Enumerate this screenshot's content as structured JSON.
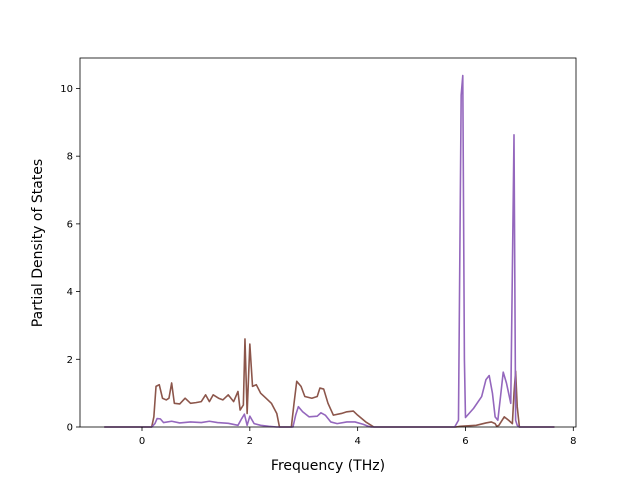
{
  "chart_data": {
    "type": "line",
    "title": "",
    "xlabel": "Frequency (THz)",
    "ylabel": "Partial Density of States",
    "xlim": [
      -1.15,
      8.05
    ],
    "ylim": [
      0,
      10.9
    ],
    "xticks": [
      0,
      2,
      4,
      6,
      8
    ],
    "yticks": [
      0,
      2,
      4,
      6,
      8,
      10
    ],
    "grid": false,
    "legend": "none",
    "series": [
      {
        "color": "#8c564b",
        "points": [
          [
            -0.7,
            0
          ],
          [
            0.18,
            0
          ],
          [
            0.22,
            0.3
          ],
          [
            0.26,
            1.2
          ],
          [
            0.32,
            1.25
          ],
          [
            0.38,
            0.85
          ],
          [
            0.45,
            0.8
          ],
          [
            0.5,
            0.85
          ],
          [
            0.55,
            1.3
          ],
          [
            0.6,
            0.7
          ],
          [
            0.7,
            0.68
          ],
          [
            0.8,
            0.85
          ],
          [
            0.9,
            0.7
          ],
          [
            1.0,
            0.72
          ],
          [
            1.1,
            0.75
          ],
          [
            1.18,
            0.95
          ],
          [
            1.25,
            0.75
          ],
          [
            1.32,
            0.95
          ],
          [
            1.42,
            0.85
          ],
          [
            1.5,
            0.8
          ],
          [
            1.6,
            0.95
          ],
          [
            1.7,
            0.75
          ],
          [
            1.78,
            1.05
          ],
          [
            1.82,
            0.5
          ],
          [
            1.88,
            0.65
          ],
          [
            1.91,
            2.6
          ],
          [
            1.95,
            0.4
          ],
          [
            2.0,
            2.45
          ],
          [
            2.05,
            1.2
          ],
          [
            2.12,
            1.25
          ],
          [
            2.2,
            1.0
          ],
          [
            2.3,
            0.85
          ],
          [
            2.4,
            0.7
          ],
          [
            2.5,
            0.4
          ],
          [
            2.55,
            0
          ],
          [
            2.77,
            0
          ],
          [
            2.82,
            0.7
          ],
          [
            2.87,
            1.35
          ],
          [
            2.95,
            1.2
          ],
          [
            3.02,
            0.9
          ],
          [
            3.15,
            0.85
          ],
          [
            3.25,
            0.9
          ],
          [
            3.3,
            1.15
          ],
          [
            3.37,
            1.12
          ],
          [
            3.45,
            0.7
          ],
          [
            3.55,
            0.35
          ],
          [
            3.7,
            0.4
          ],
          [
            3.8,
            0.45
          ],
          [
            3.92,
            0.47
          ],
          [
            4.0,
            0.35
          ],
          [
            4.15,
            0.15
          ],
          [
            4.25,
            0.05
          ],
          [
            4.3,
            0
          ],
          [
            5.82,
            0
          ],
          [
            5.9,
            0.02
          ],
          [
            6.2,
            0.05
          ],
          [
            6.38,
            0.12
          ],
          [
            6.48,
            0.15
          ],
          [
            6.55,
            0.1
          ],
          [
            6.58,
            0.02
          ],
          [
            6.62,
            0.05
          ],
          [
            6.72,
            0.3
          ],
          [
            6.8,
            0.2
          ],
          [
            6.87,
            0.1
          ],
          [
            6.9,
            1.0
          ],
          [
            6.93,
            1.65
          ],
          [
            6.96,
            0.6
          ],
          [
            7.0,
            0
          ],
          [
            7.65,
            0
          ]
        ]
      },
      {
        "color": "#9467bd",
        "points": [
          [
            -0.7,
            0
          ],
          [
            0.18,
            0
          ],
          [
            0.24,
            0.1
          ],
          [
            0.28,
            0.25
          ],
          [
            0.34,
            0.24
          ],
          [
            0.4,
            0.13
          ],
          [
            0.55,
            0.17
          ],
          [
            0.7,
            0.12
          ],
          [
            0.9,
            0.15
          ],
          [
            1.1,
            0.13
          ],
          [
            1.25,
            0.17
          ],
          [
            1.4,
            0.13
          ],
          [
            1.6,
            0.11
          ],
          [
            1.78,
            0.05
          ],
          [
            1.85,
            0.25
          ],
          [
            1.9,
            0.38
          ],
          [
            1.95,
            0.05
          ],
          [
            2.0,
            0.32
          ],
          [
            2.08,
            0.1
          ],
          [
            2.2,
            0.05
          ],
          [
            2.35,
            0.02
          ],
          [
            2.5,
            0
          ],
          [
            2.8,
            0
          ],
          [
            2.85,
            0.35
          ],
          [
            2.9,
            0.6
          ],
          [
            2.98,
            0.45
          ],
          [
            3.1,
            0.3
          ],
          [
            3.25,
            0.32
          ],
          [
            3.32,
            0.42
          ],
          [
            3.4,
            0.35
          ],
          [
            3.5,
            0.15
          ],
          [
            3.62,
            0.1
          ],
          [
            3.8,
            0.15
          ],
          [
            3.95,
            0.15
          ],
          [
            4.1,
            0.08
          ],
          [
            4.2,
            0.02
          ],
          [
            4.25,
            0
          ],
          [
            5.8,
            0
          ],
          [
            5.87,
            0.2
          ],
          [
            5.92,
            9.8
          ],
          [
            5.95,
            10.38
          ],
          [
            5.98,
            2.0
          ],
          [
            6.0,
            0.28
          ],
          [
            6.15,
            0.55
          ],
          [
            6.3,
            0.9
          ],
          [
            6.38,
            1.4
          ],
          [
            6.44,
            1.52
          ],
          [
            6.5,
            1.0
          ],
          [
            6.55,
            0.3
          ],
          [
            6.6,
            0.2
          ],
          [
            6.65,
            0.9
          ],
          [
            6.7,
            1.62
          ],
          [
            6.76,
            1.3
          ],
          [
            6.84,
            0.7
          ],
          [
            6.9,
            8.63
          ],
          [
            6.93,
            0.2
          ],
          [
            6.96,
            0.05
          ],
          [
            7.0,
            0
          ],
          [
            7.65,
            0
          ]
        ]
      }
    ]
  }
}
